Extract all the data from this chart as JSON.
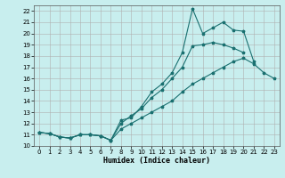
{
  "xlabel": "Humidex (Indice chaleur)",
  "background_color": "#c8eeee",
  "grid_color": "#b0b0b0",
  "line_color": "#1a7070",
  "xlim": [
    -0.5,
    23.5
  ],
  "ylim": [
    10,
    22.5
  ],
  "yticks": [
    10,
    11,
    12,
    13,
    14,
    15,
    16,
    17,
    18,
    19,
    20,
    21,
    22
  ],
  "xticks": [
    0,
    1,
    2,
    3,
    4,
    5,
    6,
    7,
    8,
    9,
    10,
    11,
    12,
    13,
    14,
    15,
    16,
    17,
    18,
    19,
    20,
    21,
    22,
    23
  ],
  "line1_x": [
    0,
    1,
    2,
    3,
    4,
    5,
    6,
    7,
    8,
    9,
    10,
    11,
    12,
    13,
    14,
    15,
    16,
    17,
    18,
    19,
    20,
    21,
    22,
    23
  ],
  "line1_y": [
    11.2,
    11.1,
    10.8,
    10.7,
    11.0,
    11.0,
    10.9,
    10.5,
    11.5,
    12.0,
    12.5,
    13.0,
    13.5,
    14.0,
    14.8,
    15.5,
    16.0,
    16.5,
    17.0,
    17.5,
    17.8,
    17.3,
    16.5,
    16.0
  ],
  "line2_x": [
    0,
    1,
    2,
    3,
    4,
    5,
    6,
    7,
    8,
    9,
    10,
    11,
    12,
    13,
    14,
    15,
    16,
    17,
    18,
    19,
    20,
    21
  ],
  "line2_y": [
    11.2,
    11.1,
    10.8,
    10.7,
    11.0,
    11.0,
    10.9,
    10.5,
    12.3,
    12.5,
    13.5,
    14.8,
    15.5,
    16.5,
    18.3,
    22.2,
    20.0,
    20.5,
    21.0,
    20.3,
    20.2,
    17.5
  ],
  "line3_x": [
    0,
    1,
    2,
    3,
    4,
    5,
    6,
    7,
    8,
    9,
    10,
    11,
    12,
    13,
    14,
    15,
    16,
    17,
    18,
    19,
    20
  ],
  "line3_y": [
    11.2,
    11.1,
    10.8,
    10.7,
    11.0,
    11.0,
    10.9,
    10.5,
    12.0,
    12.7,
    13.3,
    14.3,
    15.0,
    16.0,
    17.0,
    18.9,
    19.0,
    19.2,
    19.0,
    18.7,
    18.3
  ]
}
